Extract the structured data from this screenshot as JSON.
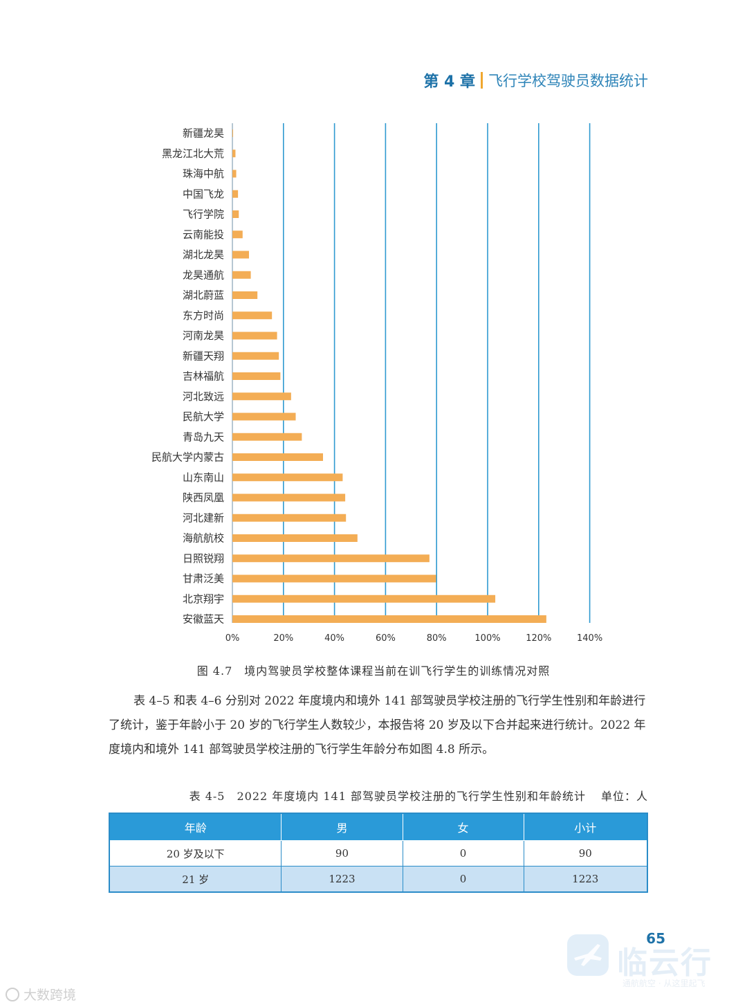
{
  "header": {
    "chapter": "第 4 章",
    "title": "飞行学校驾驶员数据统计"
  },
  "figure_caption": "图 4.7　境内驾驶员学校整体课程当前在训飞行学生的训练情况对照",
  "chart_data": {
    "type": "bar",
    "orientation": "horizontal",
    "categories": [
      "新疆龙昊",
      "黑龙江北大荒",
      "珠海中航",
      "中国飞龙",
      "飞行学院",
      "云南能投",
      "湖北龙昊",
      "龙昊通航",
      "湖北蔚蓝",
      "东方时尚",
      "河南龙昊",
      "新疆天翔",
      "吉林福航",
      "河北致远",
      "民航大学",
      "青岛九天",
      "民航大学内蒙古",
      "山东南山",
      "陕西凤凰",
      "河北建新",
      "海航航校",
      "日照锐翔",
      "甘肃泛美",
      "北京翔宇",
      "安徽蓝天"
    ],
    "values": [
      0.2,
      1.2,
      1.5,
      2.2,
      2.5,
      4.0,
      6.5,
      7.2,
      9.8,
      15.5,
      17.5,
      18.2,
      18.8,
      23.0,
      24.8,
      27.2,
      35.5,
      43.2,
      44.2,
      44.5,
      49.0,
      77.2,
      79.8,
      103.0,
      123.0
    ],
    "xticks": [
      "0%",
      "20%",
      "40%",
      "60%",
      "80%",
      "100%",
      "120%",
      "140%"
    ],
    "xlim": [
      0,
      140
    ],
    "bar_color": "#f3ad55",
    "grid_color": "#2e9ad0"
  },
  "paragraph": "表 4–5 和表 4–6 分别对 2022 年度境内和境外 141 部驾驶员学校注册的飞行学生性别和年龄进行了统计，鉴于年龄小于 20 岁的飞行学生人数较少，本报告将 20 岁及以下合并起来进行统计。2022 年度境内和境外 141 部驾驶员学校注册的飞行学生年龄分布如图 4.8 所示。",
  "table": {
    "caption": "表 4-5　2022 年度境内 141 部驾驶员学校注册的飞行学生性别和年龄统计",
    "unit": "单位：人",
    "headers": [
      "年龄",
      "男",
      "女",
      "小计"
    ],
    "rows": [
      [
        "20 岁及以下",
        "90",
        "0",
        "90"
      ],
      [
        "21 岁",
        "1223",
        "0",
        "1223"
      ]
    ]
  },
  "page_number": "65",
  "watermark": {
    "logo_text": "临云行",
    "subtitle": "通航航空 · 从这里起飞",
    "source": "大数跨境"
  }
}
